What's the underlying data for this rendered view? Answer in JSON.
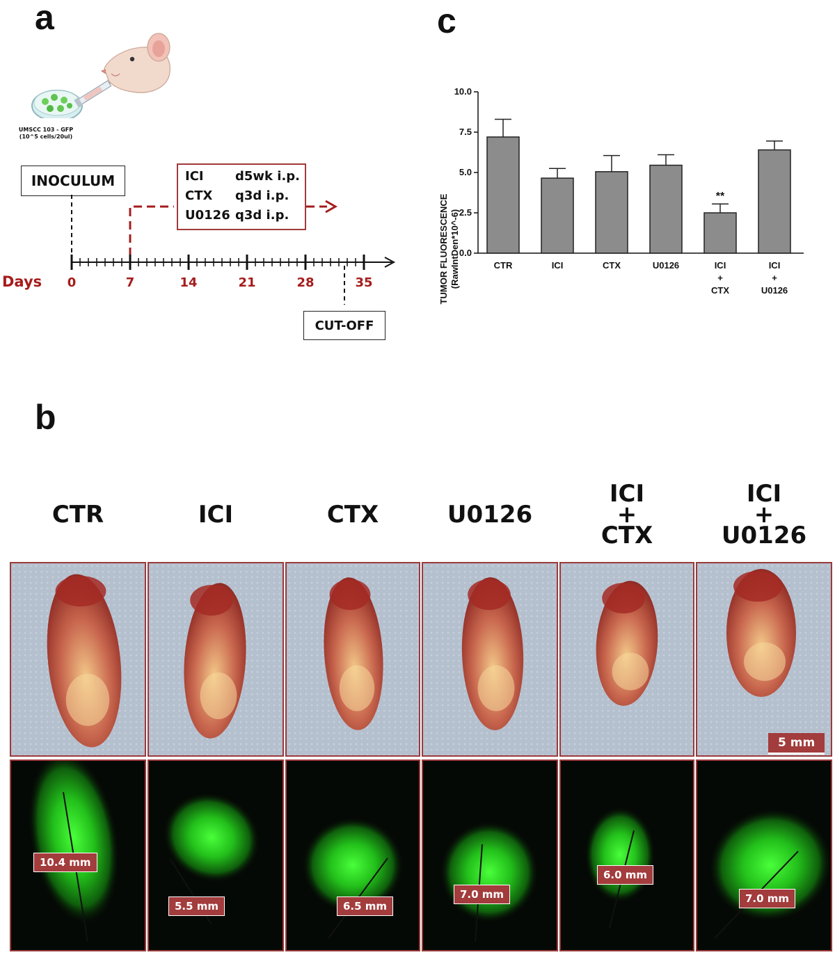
{
  "panels": {
    "a": "a",
    "b": "b",
    "c": "c"
  },
  "timeline": {
    "inoculum_label": "INOCULUM",
    "cutoff_label": "CUT-OFF",
    "days_label": "Days",
    "days": [
      "0",
      "7",
      "14",
      "21",
      "28",
      "35"
    ],
    "cell_line_line1": "UMSCC 103 - GFP",
    "cell_line_line2": "(10^5 cells/20ul)",
    "treatments": [
      {
        "drug": "ICI",
        "schedule": "d5wk i.p."
      },
      {
        "drug": "CTX",
        "schedule": "q3d i.p."
      },
      {
        "drug": "U0126",
        "schedule": "q3d i.p."
      }
    ],
    "accent_color": "#a61c1c"
  },
  "groups": [
    {
      "title_lines": [
        "CTR"
      ],
      "measure": "10.4 mm"
    },
    {
      "title_lines": [
        "ICI"
      ],
      "measure": "5.5 mm"
    },
    {
      "title_lines": [
        "CTX"
      ],
      "measure": "6.5 mm"
    },
    {
      "title_lines": [
        "U0126"
      ],
      "measure": "7.0 mm"
    },
    {
      "title_lines": [
        "ICI",
        "+",
        "CTX"
      ],
      "measure": "6.0 mm"
    },
    {
      "title_lines": [
        "ICI",
        "+",
        "U0126"
      ],
      "measure": "7.0 mm"
    }
  ],
  "scale_bar": "5 mm",
  "chart_data": {
    "type": "bar",
    "ylabel_line1": "TUMOR FLUORESCENCE",
    "ylabel_line2": "(RawIntDen*10^-6)",
    "ylim": [
      0,
      10
    ],
    "yticks": [
      "0.0",
      "2.5",
      "5.0",
      "7.5",
      "10.0"
    ],
    "categories": [
      [
        "CTR"
      ],
      [
        "ICI"
      ],
      [
        "CTX"
      ],
      [
        "U0126"
      ],
      [
        "ICI",
        "+",
        "CTX"
      ],
      [
        "ICI",
        "+",
        "U0126"
      ]
    ],
    "values": [
      7.2,
      4.65,
      5.05,
      5.45,
      2.5,
      6.4
    ],
    "errors": [
      1.1,
      0.6,
      1.0,
      0.65,
      0.55,
      0.55
    ],
    "annotations": [
      {
        "index": 4,
        "text": "**"
      }
    ],
    "bar_color": "#8c8c8c"
  }
}
